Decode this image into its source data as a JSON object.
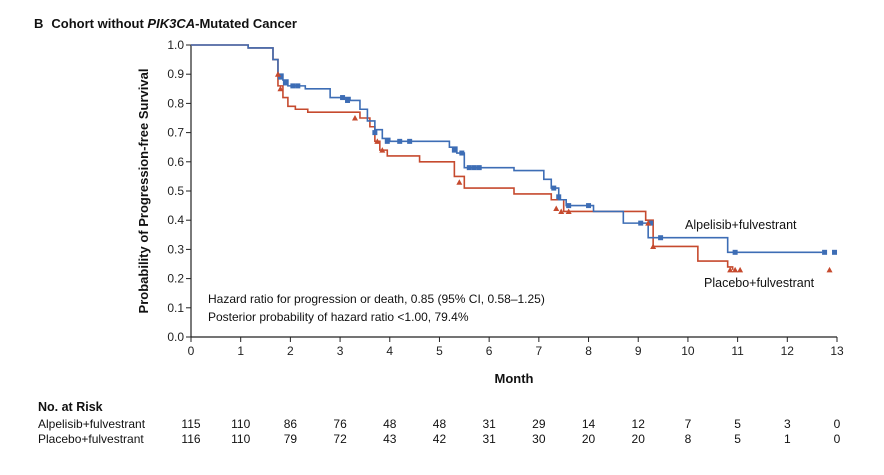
{
  "panel": {
    "letter": "B",
    "title_prefix": "Cohort without ",
    "title_italic": "PIK3CA",
    "title_suffix": "-Mutated Cancer"
  },
  "annotation": {
    "line1": "Hazard ratio for progression or death, 0.85 (95% CI, 0.58–1.25)",
    "line2": "Posterior probability of hazard ratio <1.00, 79.4%"
  },
  "risk_table": {
    "heading": "No. at Risk",
    "rows": [
      {
        "label": "Alpelisib+fulvestrant",
        "values": [
          "115",
          "110",
          "86",
          "76",
          "48",
          "48",
          "31",
          "29",
          "14",
          "12",
          "7",
          "5",
          "3",
          "0"
        ]
      },
      {
        "label": "Placebo+fulvestrant",
        "values": [
          "116",
          "110",
          "79",
          "72",
          "43",
          "42",
          "31",
          "30",
          "20",
          "20",
          "8",
          "5",
          "1",
          "0"
        ]
      }
    ]
  },
  "chart_data": {
    "type": "line",
    "subtype": "kaplan-meier step",
    "xlabel": "Month",
    "ylabel": "Probability of Progression-free Survival",
    "xlim": [
      0,
      13
    ],
    "ylim": [
      0,
      1.0
    ],
    "xticks": [
      "0",
      "1",
      "2",
      "3",
      "4",
      "5",
      "6",
      "7",
      "8",
      "9",
      "10",
      "11",
      "12",
      "13"
    ],
    "yticks": [
      "0.0",
      "0.1",
      "0.2",
      "0.3",
      "0.4",
      "0.5",
      "0.6",
      "0.7",
      "0.8",
      "0.9",
      "1.0"
    ],
    "grid": false,
    "series": [
      {
        "name": "Alpelisib+fulvestrant",
        "color": "#3d6db5",
        "x": [
          0,
          1.15,
          1.65,
          1.75,
          1.85,
          1.95,
          2.3,
          2.8,
          3.2,
          3.4,
          3.55,
          3.7,
          3.85,
          4.0,
          5.2,
          5.35,
          5.5,
          6.5,
          7.1,
          7.25,
          7.4,
          7.55,
          8.1,
          8.7,
          9.2,
          9.4,
          10.8,
          10.95,
          12.7
        ],
        "y": [
          1.0,
          0.99,
          0.95,
          0.9,
          0.88,
          0.86,
          0.85,
          0.82,
          0.81,
          0.78,
          0.74,
          0.71,
          0.68,
          0.67,
          0.65,
          0.63,
          0.58,
          0.57,
          0.54,
          0.51,
          0.47,
          0.45,
          0.43,
          0.39,
          0.34,
          0.34,
          0.29,
          0.29,
          0.29
        ]
      },
      {
        "name": "Placebo+fulvestrant",
        "color": "#c64a2e",
        "x": [
          0,
          1.15,
          1.65,
          1.75,
          1.85,
          1.95,
          2.1,
          2.35,
          3.4,
          3.6,
          3.7,
          3.8,
          3.95,
          4.6,
          5.3,
          5.5,
          6.5,
          7.25,
          7.5,
          8.1,
          9.15,
          9.3,
          10.2,
          10.8,
          10.9
        ],
        "y": [
          1.0,
          0.99,
          0.95,
          0.86,
          0.82,
          0.79,
          0.78,
          0.77,
          0.75,
          0.72,
          0.67,
          0.64,
          0.62,
          0.6,
          0.55,
          0.51,
          0.49,
          0.47,
          0.43,
          0.43,
          0.4,
          0.31,
          0.26,
          0.24,
          0.23
        ]
      }
    ],
    "censor_marks": [
      {
        "series": 0,
        "x": [
          1.8,
          1.9,
          2.05,
          2.15,
          3.05,
          3.15,
          3.7,
          3.95,
          4.2,
          4.4,
          5.3,
          5.45,
          5.6,
          5.7,
          5.8,
          7.3,
          7.4,
          7.6,
          8.0,
          9.05,
          9.25,
          9.45,
          10.95,
          12.75,
          12.95
        ],
        "y": [
          0.89,
          0.87,
          0.86,
          0.86,
          0.82,
          0.81,
          0.7,
          0.67,
          0.67,
          0.67,
          0.64,
          0.63,
          0.58,
          0.58,
          0.58,
          0.51,
          0.48,
          0.45,
          0.45,
          0.39,
          0.39,
          0.34,
          0.29,
          0.29,
          0.29
        ]
      },
      {
        "series": 1,
        "x": [
          1.75,
          1.8,
          3.3,
          3.75,
          3.85,
          5.4,
          7.35,
          7.45,
          7.6,
          9.2,
          9.3,
          10.85,
          10.95,
          11.05,
          12.85
        ],
        "y": [
          0.9,
          0.85,
          0.75,
          0.67,
          0.64,
          0.53,
          0.44,
          0.43,
          0.43,
          0.39,
          0.31,
          0.23,
          0.23,
          0.23,
          0.23
        ]
      }
    ]
  }
}
